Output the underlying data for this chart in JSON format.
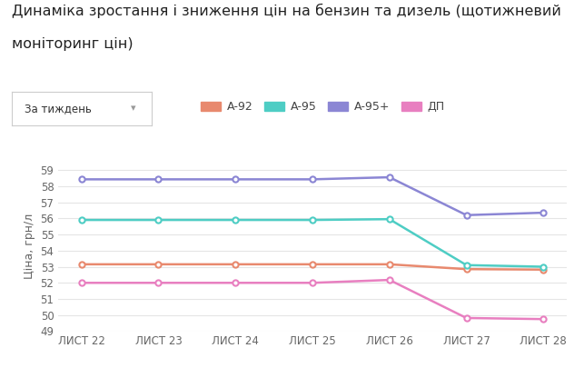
{
  "title_line1": "Динаміка зростання і зниження цін на бензин та дизель (щотижневий",
  "title_line2": "моніторинг цін)",
  "ylabel": "Ціна, грн/л",
  "x_labels": [
    "ЛИСТ 22",
    "ЛИСТ 23",
    "ЛИСТ 24",
    "ЛИСТ 25",
    "ЛИСТ 26",
    "ЛИСТ 27",
    "ЛИСТ 28"
  ],
  "x_values": [
    0,
    1,
    2,
    3,
    4,
    5,
    6
  ],
  "series_order": [
    "А-92",
    "А-95",
    "А-95+",
    "ДП"
  ],
  "series": {
    "А-92": {
      "color": "#e8896e",
      "values": [
        53.15,
        53.15,
        53.15,
        53.15,
        53.15,
        52.85,
        52.82
      ]
    },
    "А-95": {
      "color": "#4ecdc4",
      "values": [
        55.9,
        55.9,
        55.9,
        55.9,
        55.95,
        53.1,
        53.0
      ]
    },
    "А-95+": {
      "color": "#8b86d4",
      "values": [
        58.42,
        58.42,
        58.42,
        58.42,
        58.55,
        56.2,
        56.35
      ]
    },
    "ДП": {
      "color": "#e87fc0",
      "values": [
        52.0,
        52.0,
        52.0,
        52.0,
        52.18,
        49.82,
        49.75
      ]
    }
  },
  "ylim": [
    49,
    59.5
  ],
  "yticks": [
    49,
    50,
    51,
    52,
    53,
    54,
    55,
    56,
    57,
    58,
    59
  ],
  "background_color": "#ffffff",
  "grid_color": "#e5e5e5",
  "title_fontsize": 11.5,
  "axis_label_fontsize": 9,
  "tick_fontsize": 8.5,
  "legend_fontsize": 9,
  "dropdown_label": "За тиждень"
}
